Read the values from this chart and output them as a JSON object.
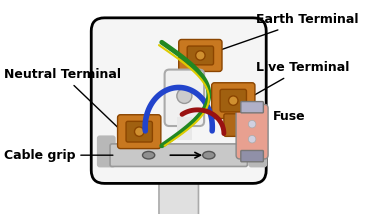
{
  "bg_color": "#ffffff",
  "plug_body_color": "#f5f5f5",
  "plug_outline_color": "#000000",
  "terminal_color": "#c87820",
  "terminal_dark": "#8b4500",
  "fuse_body_color": "#e8a090",
  "fuse_cap_color": "#b0b0c0",
  "cable_color": "#e8e8e8",
  "grip_color": "#c0c0c0",
  "labels": {
    "earth": "Earth Terminal",
    "neutral": "Neutral Terminal",
    "live": "Live Terminal",
    "fuse": "Fuse",
    "cable": "Cable grip"
  },
  "label_fontsize": 9,
  "label_fontweight": "bold",
  "figsize": [
    3.75,
    2.21
  ],
  "dpi": 100
}
